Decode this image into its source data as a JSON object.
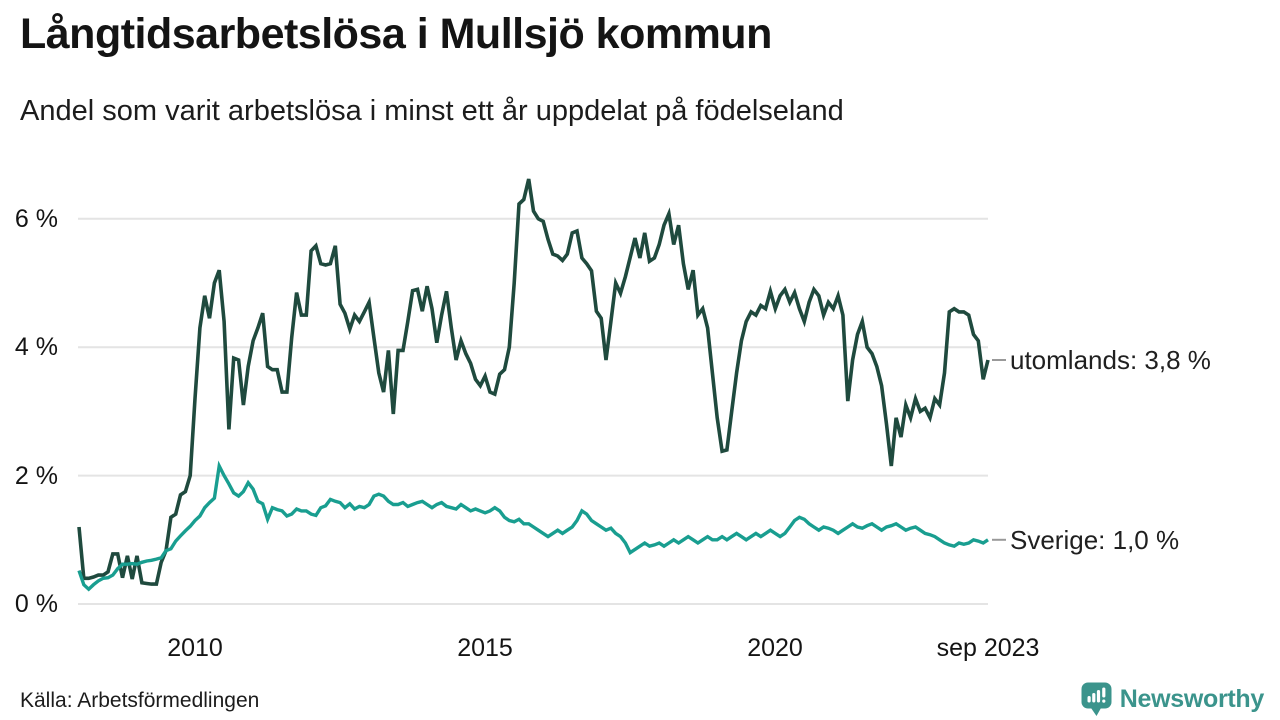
{
  "header": {
    "title": "Långtidsarbetslösa i Mullsjö kommun",
    "subtitle": "Andel som varit arbetslösa i minst ett år uppdelat på födelseland"
  },
  "footer": {
    "source": "Källa: Arbetsförmedlingen",
    "brand": "Newsworthy"
  },
  "colors": {
    "utomlands_line": "#1f4a3e",
    "sverige_line": "#199e90",
    "grid": "#e4e4e4",
    "annotation_dash": "#999999",
    "brand_teal": "#3b948c",
    "text": "#141414"
  },
  "chart_data": {
    "type": "line",
    "title": "Långtidsarbetslösa i Mullsjö kommun",
    "subtitle": "Andel som varit arbetslösa i minst ett år uppdelat på födelseland",
    "frequency": "monthly",
    "x_start": "2008-01",
    "x_end": "2023-09",
    "ylim": [
      0,
      6.8
    ],
    "grid": true,
    "y_axis": {
      "ticks": [
        {
          "label": "0 %",
          "value": 0
        },
        {
          "label": "2 %",
          "value": 2
        },
        {
          "label": "4 %",
          "value": 4
        },
        {
          "label": "6 %",
          "value": 6
        }
      ]
    },
    "x_axis": {
      "ticks": [
        {
          "label": "2010",
          "month_index": 24
        },
        {
          "label": "2015",
          "month_index": 84
        },
        {
          "label": "2020",
          "month_index": 144
        },
        {
          "label": "sep 2023",
          "month_index": 188
        }
      ]
    },
    "series": [
      {
        "name": "utomlands",
        "end_label": "utomlands: 3,8 %",
        "end_value_text": "3,8 %",
        "color": "#1f4a3e",
        "values": [
          1.2,
          0.4,
          0.4,
          0.42,
          0.45,
          0.45,
          0.5,
          0.78,
          0.78,
          0.41,
          0.75,
          0.39,
          0.75,
          0.33,
          0.32,
          0.31,
          0.31,
          0.65,
          0.83,
          1.35,
          1.4,
          1.7,
          1.75,
          2.0,
          3.2,
          4.3,
          4.8,
          4.45,
          5.0,
          5.2,
          4.4,
          2.72,
          3.83,
          3.8,
          3.1,
          3.7,
          4.1,
          4.3,
          4.53,
          3.7,
          3.65,
          3.65,
          3.3,
          3.3,
          4.15,
          4.85,
          4.5,
          4.5,
          5.5,
          5.58,
          5.3,
          5.28,
          5.3,
          5.58,
          4.67,
          4.53,
          4.28,
          4.5,
          4.4,
          4.55,
          4.7,
          4.15,
          3.6,
          3.3,
          3.95,
          2.96,
          3.95,
          3.95,
          4.4,
          4.88,
          4.9,
          4.56,
          4.95,
          4.6,
          4.07,
          4.5,
          4.87,
          4.3,
          3.8,
          4.1,
          3.9,
          3.75,
          3.5,
          3.4,
          3.55,
          3.3,
          3.27,
          3.58,
          3.65,
          4.0,
          5.0,
          6.23,
          6.3,
          6.62,
          6.12,
          6.0,
          5.96,
          5.68,
          5.45,
          5.42,
          5.35,
          5.45,
          5.78,
          5.81,
          5.39,
          5.3,
          5.19,
          4.56,
          4.45,
          3.8,
          4.4,
          5.0,
          4.84,
          5.1,
          5.4,
          5.7,
          5.39,
          5.78,
          5.34,
          5.39,
          5.6,
          5.9,
          6.08,
          5.6,
          5.9,
          5.3,
          4.9,
          5.2,
          4.5,
          4.6,
          4.3,
          3.6,
          2.9,
          2.38,
          2.4,
          3.0,
          3.6,
          4.1,
          4.4,
          4.55,
          4.5,
          4.65,
          4.6,
          4.87,
          4.6,
          4.8,
          4.9,
          4.7,
          4.85,
          4.6,
          4.4,
          4.7,
          4.9,
          4.8,
          4.5,
          4.7,
          4.6,
          4.8,
          4.5,
          3.16,
          3.8,
          4.2,
          4.4,
          4.0,
          3.9,
          3.7,
          3.4,
          2.8,
          2.15,
          2.9,
          2.6,
          3.1,
          2.9,
          3.2,
          3.0,
          3.05,
          2.9,
          3.2,
          3.1,
          3.6,
          4.55,
          4.6,
          4.55,
          4.55,
          4.5,
          4.2,
          4.1,
          3.5,
          3.8
        ]
      },
      {
        "name": "Sverige",
        "end_label": "Sverige: 1,0 %",
        "end_value_text": "1,0 %",
        "color": "#199e90",
        "values": [
          0.52,
          0.3,
          0.23,
          0.3,
          0.36,
          0.4,
          0.41,
          0.45,
          0.55,
          0.62,
          0.62,
          0.63,
          0.62,
          0.65,
          0.67,
          0.68,
          0.7,
          0.72,
          0.83,
          0.86,
          0.98,
          1.06,
          1.14,
          1.21,
          1.3,
          1.37,
          1.5,
          1.58,
          1.65,
          2.15,
          2.0,
          1.87,
          1.73,
          1.68,
          1.75,
          1.89,
          1.79,
          1.6,
          1.56,
          1.32,
          1.5,
          1.47,
          1.45,
          1.37,
          1.4,
          1.48,
          1.45,
          1.45,
          1.4,
          1.38,
          1.5,
          1.53,
          1.63,
          1.6,
          1.58,
          1.5,
          1.56,
          1.48,
          1.52,
          1.5,
          1.55,
          1.68,
          1.71,
          1.68,
          1.6,
          1.55,
          1.55,
          1.58,
          1.52,
          1.55,
          1.58,
          1.6,
          1.55,
          1.5,
          1.55,
          1.58,
          1.52,
          1.5,
          1.48,
          1.55,
          1.5,
          1.45,
          1.48,
          1.45,
          1.42,
          1.45,
          1.5,
          1.45,
          1.35,
          1.3,
          1.28,
          1.32,
          1.25,
          1.25,
          1.2,
          1.15,
          1.1,
          1.05,
          1.1,
          1.15,
          1.1,
          1.15,
          1.2,
          1.3,
          1.45,
          1.4,
          1.3,
          1.25,
          1.2,
          1.15,
          1.18,
          1.1,
          1.05,
          0.95,
          0.8,
          0.85,
          0.9,
          0.95,
          0.9,
          0.92,
          0.95,
          0.9,
          0.95,
          1.0,
          0.95,
          1.0,
          1.05,
          1.0,
          0.95,
          1.0,
          1.05,
          1.0,
          1.0,
          1.05,
          1.0,
          1.05,
          1.1,
          1.05,
          1.0,
          1.05,
          1.1,
          1.05,
          1.1,
          1.15,
          1.1,
          1.05,
          1.1,
          1.2,
          1.3,
          1.35,
          1.32,
          1.25,
          1.2,
          1.15,
          1.2,
          1.18,
          1.15,
          1.1,
          1.15,
          1.2,
          1.25,
          1.2,
          1.18,
          1.22,
          1.25,
          1.2,
          1.15,
          1.2,
          1.22,
          1.25,
          1.2,
          1.15,
          1.18,
          1.2,
          1.15,
          1.1,
          1.08,
          1.05,
          1.0,
          0.95,
          0.92,
          0.9,
          0.95,
          0.93,
          0.95,
          1.0,
          0.98,
          0.95,
          1.0
        ]
      }
    ]
  }
}
